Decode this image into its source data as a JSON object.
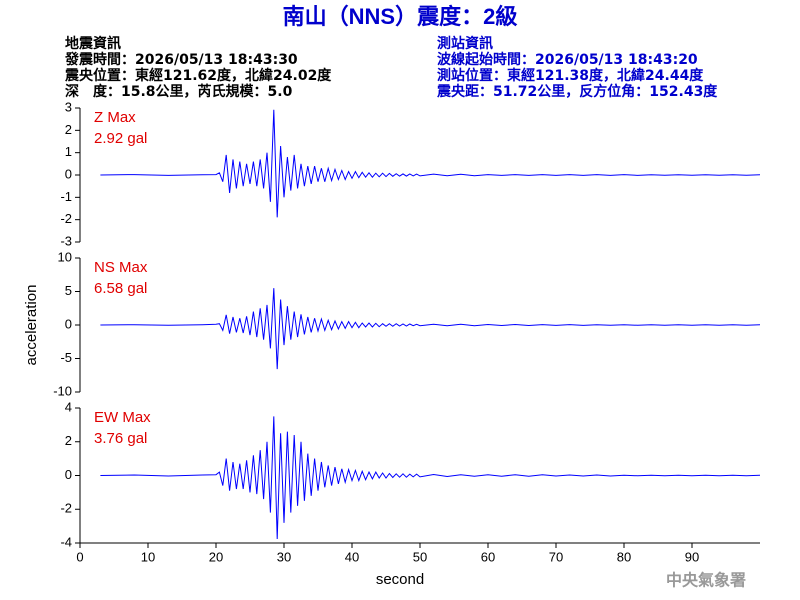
{
  "header": {
    "title": "南山（NNS）震度：2級",
    "left": [
      "地震資訊",
      "發震時間：2026/05/13 18:43:30",
      "震央位置：東經121.62度，北緯24.02度",
      "深　度：15.8公里，芮氏規模：5.0"
    ],
    "right": [
      "測站資訊",
      "波線起始時間：2026/05/13 18:43:20",
      "測站位置：東經121.38度，北緯24.44度",
      "震央距：51.72公里，反方位角：152.43度"
    ]
  },
  "footer": "中央氣象署",
  "chart_data": [
    {
      "type": "line",
      "annotation": [
        "Z Max",
        "2.92 gal"
      ],
      "color": "#0000ff",
      "xlim": [
        0,
        100
      ],
      "ylim": [
        -3,
        3
      ],
      "yticks": [
        -3,
        -2,
        -1,
        0,
        1,
        2,
        3
      ],
      "x": [
        3,
        8,
        13,
        18,
        20,
        20.5,
        21,
        21.5,
        22,
        22.5,
        23,
        23.5,
        24,
        24.5,
        25,
        25.5,
        26,
        26.5,
        27,
        27.5,
        28,
        28.5,
        29,
        29.5,
        30,
        30.5,
        31,
        31.5,
        32,
        32.5,
        33,
        33.5,
        34,
        34.5,
        35,
        35.5,
        36,
        36.5,
        37,
        37.5,
        38,
        38.5,
        39,
        39.5,
        40,
        40.5,
        41,
        41.5,
        42,
        42.5,
        43,
        43.5,
        44,
        44.5,
        45,
        45.5,
        46,
        46.5,
        47,
        47.5,
        48,
        48.5,
        49,
        49.5,
        50,
        52,
        54,
        56,
        58,
        60,
        62,
        64,
        66,
        68,
        70,
        72,
        74,
        76,
        78,
        80,
        82,
        84,
        86,
        88,
        90,
        92,
        94,
        96,
        98,
        100
      ],
      "values": [
        0,
        0.02,
        -0.02,
        0.01,
        0.02,
        0.1,
        -0.3,
        0.9,
        -0.8,
        0.7,
        -0.6,
        0.6,
        -0.5,
        0.5,
        -0.4,
        0.6,
        -0.5,
        0.7,
        -0.6,
        1.0,
        -1.2,
        2.92,
        -1.9,
        1.3,
        -1.0,
        0.8,
        -0.7,
        0.9,
        -0.6,
        0.5,
        -0.5,
        0.4,
        -0.4,
        0.4,
        -0.3,
        0.3,
        -0.3,
        0.3,
        -0.25,
        0.25,
        -0.2,
        0.2,
        -0.2,
        0.15,
        -0.15,
        0.15,
        -0.12,
        0.12,
        -0.1,
        0.1,
        -0.1,
        0.08,
        -0.08,
        0.08,
        -0.07,
        0.07,
        -0.06,
        0.06,
        -0.05,
        0.05,
        -0.05,
        0.05,
        -0.04,
        0.04,
        -0.04,
        0.04,
        -0.03,
        0.03,
        -0.03,
        0.02,
        -0.02,
        0.02,
        -0.02,
        0.02,
        -0.02,
        0.02,
        -0.02,
        0.02,
        -0.02,
        0.02,
        -0.02,
        0.01,
        -0.01,
        0.01,
        -0.01,
        0.01,
        -0.01,
        0.01,
        -0.01,
        0.01
      ]
    },
    {
      "type": "line",
      "annotation": [
        "NS Max",
        "6.58 gal"
      ],
      "color": "#0000ff",
      "xlim": [
        0,
        100
      ],
      "ylim": [
        -10,
        10
      ],
      "yticks": [
        -10,
        -5,
        0,
        5,
        10
      ],
      "ylabel": "acceleration",
      "x": [
        3,
        8,
        13,
        18,
        20,
        20.5,
        21,
        21.5,
        22,
        22.5,
        23,
        23.5,
        24,
        24.5,
        25,
        25.5,
        26,
        26.5,
        27,
        27.5,
        28,
        28.5,
        29,
        29.5,
        30,
        30.5,
        31,
        31.5,
        32,
        32.5,
        33,
        33.5,
        34,
        34.5,
        35,
        35.5,
        36,
        36.5,
        37,
        37.5,
        38,
        38.5,
        39,
        39.5,
        40,
        40.5,
        41,
        41.5,
        42,
        42.5,
        43,
        43.5,
        44,
        44.5,
        45,
        45.5,
        46,
        46.5,
        47,
        47.5,
        48,
        48.5,
        49,
        49.5,
        50,
        52,
        54,
        56,
        58,
        60,
        62,
        64,
        66,
        68,
        70,
        72,
        74,
        76,
        78,
        80,
        82,
        84,
        86,
        88,
        90,
        92,
        94,
        96,
        98,
        100
      ],
      "values": [
        0,
        0.05,
        -0.05,
        0.05,
        0.1,
        0.2,
        -0.8,
        1.5,
        -1.3,
        1.2,
        -1.1,
        1.0,
        -1.2,
        1.3,
        -1.5,
        2.0,
        -1.8,
        2.5,
        -2.2,
        3.0,
        -3.5,
        5.5,
        -6.58,
        3.8,
        -3.0,
        2.8,
        -2.2,
        2.0,
        -1.8,
        1.6,
        -1.4,
        1.2,
        -1.1,
        1.0,
        -0.9,
        0.9,
        -0.8,
        0.7,
        -0.7,
        0.6,
        -0.6,
        0.5,
        -0.5,
        0.5,
        -0.4,
        0.4,
        -0.4,
        0.3,
        -0.3,
        0.3,
        -0.3,
        0.25,
        -0.25,
        0.2,
        -0.2,
        0.2,
        -0.2,
        0.2,
        -0.15,
        0.15,
        -0.15,
        0.15,
        -0.1,
        0.1,
        -0.1,
        0.1,
        -0.1,
        0.1,
        -0.1,
        0.08,
        -0.08,
        0.08,
        -0.08,
        0.06,
        -0.06,
        0.06,
        -0.06,
        0.05,
        -0.05,
        0.05,
        -0.05,
        0.04,
        -0.04,
        0.04,
        -0.04,
        0.03,
        -0.03,
        0.03,
        -0.03,
        0.03
      ]
    },
    {
      "type": "line",
      "annotation": [
        "EW Max",
        "3.76 gal"
      ],
      "color": "#0000ff",
      "xlim": [
        0,
        100
      ],
      "ylim": [
        -4,
        4
      ],
      "yticks": [
        -4,
        -2,
        0,
        2,
        4
      ],
      "xticks": [
        0,
        10,
        20,
        30,
        40,
        50,
        60,
        70,
        80,
        90
      ],
      "xlabel": "second",
      "x": [
        3,
        8,
        13,
        18,
        20,
        20.5,
        21,
        21.5,
        22,
        22.5,
        23,
        23.5,
        24,
        24.5,
        25,
        25.5,
        26,
        26.5,
        27,
        27.5,
        28,
        28.5,
        29,
        29.5,
        30,
        30.5,
        31,
        31.5,
        32,
        32.5,
        33,
        33.5,
        34,
        34.5,
        35,
        35.5,
        36,
        36.5,
        37,
        37.5,
        38,
        38.5,
        39,
        39.5,
        40,
        40.5,
        41,
        41.5,
        42,
        42.5,
        43,
        43.5,
        44,
        44.5,
        45,
        45.5,
        46,
        46.5,
        47,
        47.5,
        48,
        48.5,
        49,
        49.5,
        50,
        52,
        54,
        56,
        58,
        60,
        62,
        64,
        66,
        68,
        70,
        72,
        74,
        76,
        78,
        80,
        82,
        84,
        86,
        88,
        90,
        92,
        94,
        96,
        98,
        100
      ],
      "values": [
        0,
        0.03,
        -0.03,
        0.03,
        0.05,
        0.2,
        -0.6,
        1.0,
        -0.9,
        0.8,
        -0.8,
        0.7,
        -0.8,
        0.9,
        -1.0,
        1.2,
        -1.1,
        1.5,
        -1.4,
        2.0,
        -2.2,
        3.5,
        -3.76,
        2.5,
        -2.8,
        2.6,
        -2.2,
        2.4,
        -1.8,
        2.0,
        -1.5,
        1.3,
        -1.2,
        1.0,
        -0.9,
        0.8,
        -0.7,
        0.6,
        -0.6,
        0.5,
        -0.5,
        0.4,
        -0.4,
        0.35,
        -0.3,
        0.3,
        -0.3,
        0.25,
        -0.25,
        0.2,
        -0.2,
        0.2,
        -0.15,
        0.15,
        -0.15,
        0.12,
        -0.12,
        0.1,
        -0.1,
        0.1,
        -0.1,
        0.08,
        -0.08,
        0.08,
        -0.08,
        0.06,
        -0.06,
        0.05,
        -0.05,
        0.05,
        -0.04,
        0.04,
        -0.04,
        0.04,
        -0.03,
        0.03,
        -0.03,
        0.03,
        -0.03,
        0.02,
        -0.02,
        0.02,
        -0.02,
        0.02,
        -0.02,
        0.02,
        -0.02,
        0.02,
        -0.02,
        0.02
      ]
    }
  ]
}
